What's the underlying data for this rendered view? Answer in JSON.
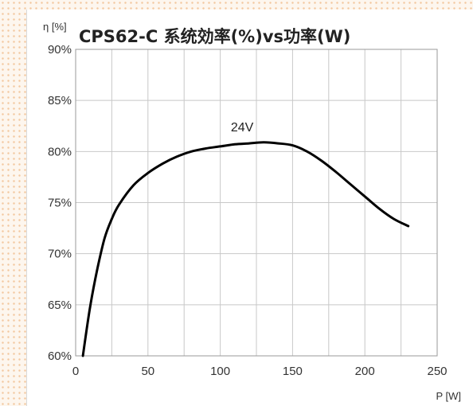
{
  "chart_data": {
    "type": "line",
    "title": "CPS62-C  系统効率(%)vs功率(W)",
    "ylabel": "η [%]",
    "xlabel": "P [W]",
    "xlim": [
      0,
      250
    ],
    "ylim": [
      60,
      90
    ],
    "x_ticks": [
      0,
      50,
      100,
      150,
      200,
      250
    ],
    "y_ticks": [
      60,
      65,
      70,
      75,
      80,
      85,
      90
    ],
    "x_tick_labels": [
      "0",
      "50",
      "100",
      "150",
      "200",
      "250"
    ],
    "y_tick_labels": [
      "60%",
      "65%",
      "70%",
      "75%",
      "80%",
      "85%",
      "90%"
    ],
    "grid": true,
    "series": [
      {
        "name": "24V",
        "color": "#000000",
        "x": [
          5,
          10,
          15,
          20,
          25,
          30,
          40,
          50,
          60,
          70,
          80,
          90,
          100,
          110,
          120,
          130,
          140,
          150,
          160,
          170,
          180,
          190,
          200,
          210,
          220,
          230
        ],
        "y": [
          60.0,
          64.8,
          68.5,
          71.5,
          73.4,
          74.8,
          76.7,
          77.9,
          78.8,
          79.5,
          80.0,
          80.3,
          80.5,
          80.7,
          80.8,
          80.9,
          80.8,
          80.6,
          80.0,
          79.1,
          78.0,
          76.8,
          75.6,
          74.4,
          73.4,
          72.7
        ]
      }
    ]
  }
}
